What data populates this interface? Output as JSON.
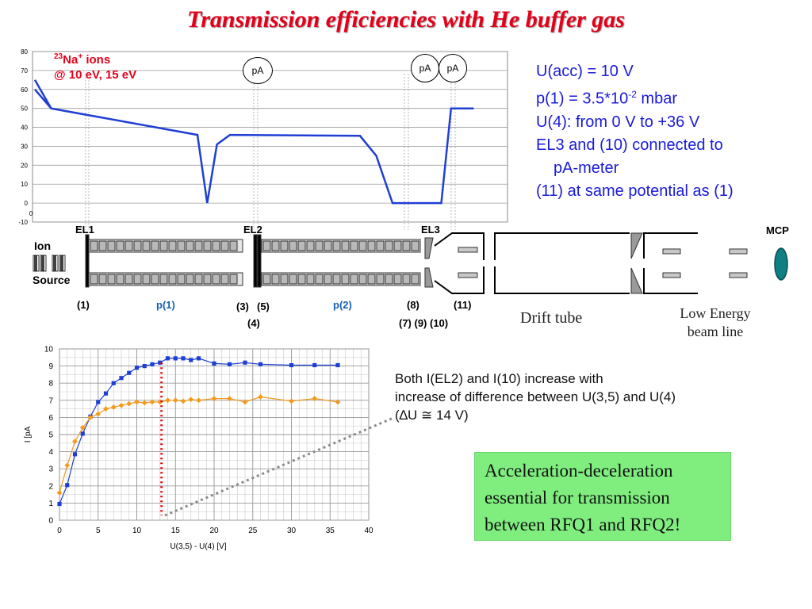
{
  "title": "Transmission efficiencies with He buffer gas",
  "parameters": {
    "line1": "U(acc) = 10 V",
    "line2_pre": "p(1) = 3.5*10",
    "line2_sup": "-2",
    "line2_post": " mbar",
    "line3": "U(4): from 0 V to +36 V",
    "line4": "EL3 and (10) connected to",
    "line5": "pA-meter",
    "line6": "(11) at same potential as (1)"
  },
  "potential_plot": {
    "ion_label_sup": "23",
    "ion_label_element": "Na",
    "ion_label_charge": "+",
    "ion_label_rest": " ions",
    "ion_label_energy": "@ 10 eV, 15 eV",
    "meter_label": "pA"
  },
  "setup": {
    "el1": "EL1",
    "el2": "EL2",
    "el3": "EL3",
    "mcp": "MCP",
    "ion": "Ion",
    "source": "Source",
    "n1": "(1)",
    "p1": "p(1)",
    "n3": "(3)",
    "n5": "(5)",
    "n4": "(4)",
    "p2": "p(2)",
    "n8": "(8)",
    "n11": "(11)",
    "n7910": "(7) (9) (10)",
    "drift": "Drift tube",
    "lowe1": "Low Energy",
    "lowe2": "beam line"
  },
  "explanation": {
    "line1": "Both I(EL2) and I(10) increase with",
    "line2": "increase of difference between U(3,5) and U(4)",
    "line3": "(∆U ≅ 14 V)"
  },
  "conclusion": {
    "line1": "Acceleration-deceleration",
    "line2": "essential for transmission",
    "line3": "between RFQ1 and RFQ2!"
  },
  "colors": {
    "title": "#e4001b",
    "params": "#1a1adc",
    "series_blue": "#1f3fd4",
    "series_orange": "#f29a1e",
    "marker_red": "#e00000",
    "box": "#7fee7f"
  },
  "chart_data": [
    {
      "type": "line",
      "title": "",
      "xlabel": "",
      "ylabel": "",
      "ylim": [
        -10,
        80
      ],
      "yticks": [
        -10,
        0,
        10,
        20,
        30,
        40,
        50,
        60,
        70,
        80
      ],
      "extra_label": "0",
      "grid": true,
      "series": [
        {
          "points": [
            [
              0,
              65
            ],
            [
              1,
              50
            ],
            [
              10,
              36
            ],
            [
              10.6,
              0
            ],
            [
              11.2,
              31
            ],
            [
              12,
              36
            ],
            [
              20,
              35.5
            ],
            [
              21,
              25
            ],
            [
              22,
              0
            ],
            [
              25,
              0
            ],
            [
              25.6,
              50
            ],
            [
              27,
              50
            ]
          ]
        },
        {
          "points": [
            [
              0,
              60
            ],
            [
              1,
              50
            ]
          ]
        }
      ]
    },
    {
      "type": "line",
      "title": "",
      "xlabel": "U(3,5) - U(4) [V]",
      "ylabel": "I [pA",
      "xlim": [
        0,
        40
      ],
      "ylim": [
        0,
        10
      ],
      "xticks": [
        0,
        5,
        10,
        15,
        20,
        25,
        30,
        35,
        40
      ],
      "yticks": [
        0,
        1,
        2,
        3,
        4,
        5,
        6,
        7,
        8,
        9,
        10
      ],
      "grid": true,
      "series": [
        {
          "color": "#1f3fd4",
          "marker": "square",
          "points": [
            [
              0,
              0.95
            ],
            [
              1,
              2.05
            ],
            [
              2,
              3.85
            ],
            [
              3,
              5.05
            ],
            [
              4,
              6.05
            ],
            [
              5,
              6.9
            ],
            [
              6,
              7.4
            ],
            [
              7,
              8.0
            ],
            [
              8,
              8.3
            ],
            [
              9,
              8.6
            ],
            [
              10,
              8.9
            ],
            [
              11,
              9.0
            ],
            [
              12,
              9.1
            ],
            [
              13,
              9.2
            ],
            [
              14,
              9.45
            ],
            [
              15,
              9.45
            ],
            [
              16,
              9.45
            ],
            [
              17,
              9.35
            ],
            [
              18,
              9.45
            ],
            [
              20,
              9.15
            ],
            [
              22,
              9.1
            ],
            [
              24,
              9.2
            ],
            [
              26,
              9.1
            ],
            [
              30,
              9.05
            ],
            [
              33,
              9.05
            ],
            [
              36,
              9.05
            ]
          ]
        },
        {
          "color": "#f29a1e",
          "marker": "diamond",
          "points": [
            [
              0,
              1.6
            ],
            [
              1,
              3.2
            ],
            [
              2,
              4.6
            ],
            [
              3,
              5.4
            ],
            [
              4,
              6.0
            ],
            [
              5,
              6.2
            ],
            [
              6,
              6.5
            ],
            [
              7,
              6.6
            ],
            [
              8,
              6.7
            ],
            [
              9,
              6.8
            ],
            [
              10,
              6.9
            ],
            [
              11,
              6.85
            ],
            [
              12,
              6.9
            ],
            [
              13,
              6.9
            ],
            [
              14,
              7.0
            ],
            [
              15,
              7.0
            ],
            [
              16,
              6.95
            ],
            [
              17,
              7.05
            ],
            [
              18,
              7.0
            ],
            [
              20,
              7.1
            ],
            [
              22,
              7.1
            ],
            [
              24,
              6.9
            ],
            [
              26,
              7.2
            ],
            [
              30,
              6.95
            ],
            [
              33,
              7.1
            ],
            [
              36,
              6.9
            ]
          ]
        }
      ],
      "marker_line_x": 13.2
    }
  ]
}
